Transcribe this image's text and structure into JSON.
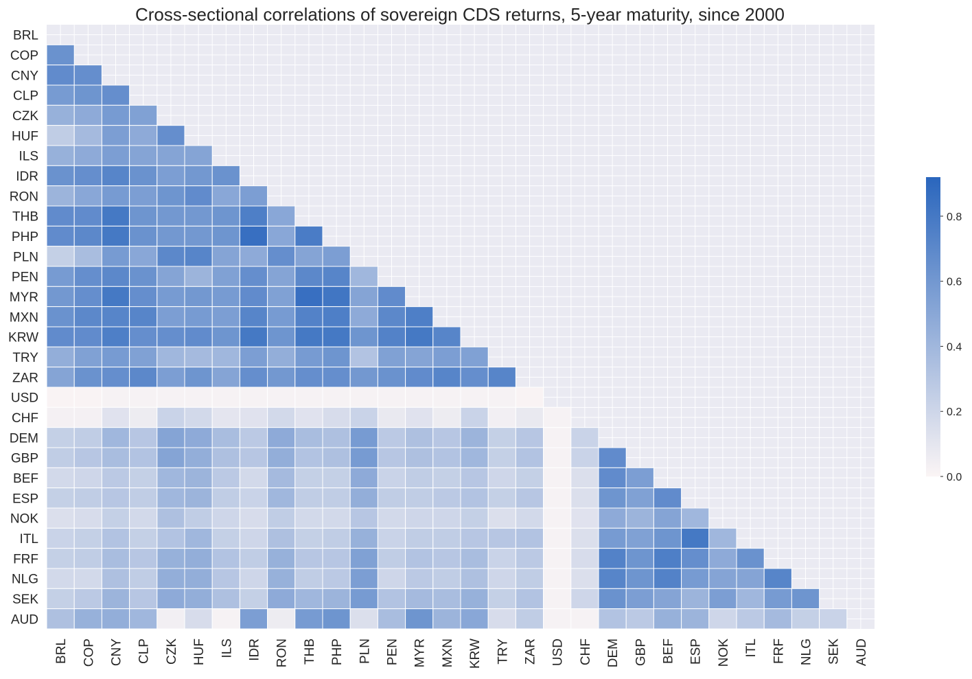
{
  "chart_data": {
    "type": "heatmap",
    "title": "Cross-sectional correlations of sovereign CDS returns, 5-year maturity, since 2000",
    "labels": [
      "BRL",
      "COP",
      "CNY",
      "CLP",
      "CZK",
      "HUF",
      "ILS",
      "IDR",
      "RON",
      "THB",
      "PHP",
      "PLN",
      "PEN",
      "MYR",
      "MXN",
      "KRW",
      "TRY",
      "ZAR",
      "USD",
      "CHF",
      "DEM",
      "GBP",
      "BEF",
      "ESP",
      "NOK",
      "ITL",
      "FRF",
      "NLG",
      "SEK",
      "AUD"
    ],
    "mask": "upper-triangle-including-diagonal",
    "rows": [
      [],
      [
        0.64
      ],
      [
        0.68,
        0.66
      ],
      [
        0.58,
        0.62,
        0.66
      ],
      [
        0.44,
        0.48,
        0.58,
        0.54
      ],
      [
        0.26,
        0.38,
        0.56,
        0.48,
        0.66
      ],
      [
        0.44,
        0.48,
        0.56,
        0.52,
        0.52,
        0.52
      ],
      [
        0.64,
        0.66,
        0.72,
        0.64,
        0.56,
        0.6,
        0.64
      ],
      [
        0.42,
        0.5,
        0.58,
        0.56,
        0.62,
        0.68,
        0.5,
        0.56
      ],
      [
        0.68,
        0.68,
        0.8,
        0.62,
        0.6,
        0.6,
        0.62,
        0.76,
        0.5
      ],
      [
        0.68,
        0.7,
        0.8,
        0.64,
        0.6,
        0.6,
        0.62,
        0.86,
        0.5,
        0.78
      ],
      [
        0.24,
        0.36,
        0.58,
        0.5,
        0.7,
        0.72,
        0.52,
        0.48,
        0.66,
        0.52,
        0.56
      ],
      [
        0.58,
        0.66,
        0.7,
        0.64,
        0.52,
        0.42,
        0.54,
        0.66,
        0.52,
        0.7,
        0.72,
        0.4
      ],
      [
        0.6,
        0.66,
        0.8,
        0.66,
        0.58,
        0.6,
        0.58,
        0.68,
        0.54,
        0.86,
        0.82,
        0.52,
        0.68
      ],
      [
        0.64,
        0.7,
        0.72,
        0.72,
        0.56,
        0.58,
        0.56,
        0.72,
        0.58,
        0.74,
        0.76,
        0.48,
        0.7,
        0.76
      ],
      [
        0.68,
        0.68,
        0.76,
        0.66,
        0.66,
        0.68,
        0.62,
        0.8,
        0.62,
        0.8,
        0.8,
        0.62,
        0.74,
        0.8,
        0.72
      ],
      [
        0.46,
        0.54,
        0.58,
        0.54,
        0.4,
        0.38,
        0.4,
        0.56,
        0.46,
        0.58,
        0.62,
        0.32,
        0.54,
        0.52,
        0.56,
        0.54
      ],
      [
        0.52,
        0.64,
        0.66,
        0.7,
        0.56,
        0.62,
        0.52,
        0.66,
        0.6,
        0.66,
        0.66,
        0.6,
        0.64,
        0.68,
        0.72,
        0.66,
        0.72
      ],
      [
        0.01,
        0.01,
        0.02,
        0.02,
        0.02,
        0.02,
        0.02,
        0.02,
        0.02,
        0.02,
        0.02,
        0.02,
        0.02,
        0.02,
        0.02,
        0.02,
        0.02,
        0.01
      ],
      [
        0.03,
        0.03,
        0.12,
        0.06,
        0.22,
        0.18,
        0.1,
        0.12,
        0.18,
        0.12,
        0.16,
        0.22,
        0.08,
        0.12,
        0.06,
        0.22,
        0.04,
        0.08,
        0.02
      ],
      [
        0.24,
        0.26,
        0.4,
        0.3,
        0.52,
        0.48,
        0.36,
        0.28,
        0.48,
        0.36,
        0.34,
        0.58,
        0.28,
        0.34,
        0.3,
        0.42,
        0.24,
        0.3,
        0.02,
        0.22
      ],
      [
        0.26,
        0.3,
        0.36,
        0.32,
        0.52,
        0.46,
        0.34,
        0.3,
        0.46,
        0.32,
        0.34,
        0.58,
        0.3,
        0.34,
        0.32,
        0.4,
        0.24,
        0.32,
        0.02,
        0.22,
        0.68
      ],
      [
        0.18,
        0.2,
        0.28,
        0.24,
        0.4,
        0.42,
        0.28,
        0.18,
        0.38,
        0.24,
        0.24,
        0.48,
        0.22,
        0.26,
        0.24,
        0.3,
        0.2,
        0.24,
        0.02,
        0.14,
        0.68,
        0.56
      ],
      [
        0.24,
        0.26,
        0.3,
        0.26,
        0.4,
        0.42,
        0.26,
        0.22,
        0.4,
        0.26,
        0.26,
        0.46,
        0.26,
        0.26,
        0.28,
        0.32,
        0.24,
        0.3,
        0.02,
        0.14,
        0.62,
        0.54,
        0.68
      ],
      [
        0.14,
        0.16,
        0.24,
        0.18,
        0.34,
        0.26,
        0.2,
        0.16,
        0.26,
        0.18,
        0.18,
        0.3,
        0.18,
        0.2,
        0.2,
        0.24,
        0.14,
        0.18,
        0.02,
        0.12,
        0.48,
        0.42,
        0.52,
        0.4
      ],
      [
        0.22,
        0.24,
        0.32,
        0.24,
        0.32,
        0.4,
        0.24,
        0.2,
        0.34,
        0.24,
        0.26,
        0.44,
        0.22,
        0.26,
        0.26,
        0.3,
        0.3,
        0.32,
        0.02,
        0.14,
        0.58,
        0.54,
        0.62,
        0.8,
        0.4
      ],
      [
        0.24,
        0.26,
        0.36,
        0.3,
        0.44,
        0.46,
        0.32,
        0.26,
        0.44,
        0.3,
        0.3,
        0.54,
        0.26,
        0.32,
        0.3,
        0.36,
        0.22,
        0.28,
        0.02,
        0.16,
        0.74,
        0.62,
        0.76,
        0.66,
        0.48,
        0.64
      ],
      [
        0.18,
        0.18,
        0.34,
        0.26,
        0.46,
        0.46,
        0.3,
        0.2,
        0.44,
        0.26,
        0.28,
        0.56,
        0.2,
        0.28,
        0.26,
        0.34,
        0.2,
        0.26,
        0.02,
        0.14,
        0.72,
        0.62,
        0.74,
        0.58,
        0.52,
        0.52,
        0.72
      ],
      [
        0.24,
        0.28,
        0.42,
        0.3,
        0.48,
        0.46,
        0.34,
        0.24,
        0.48,
        0.4,
        0.42,
        0.58,
        0.32,
        0.38,
        0.36,
        0.44,
        0.24,
        0.32,
        0.02,
        0.2,
        0.64,
        0.56,
        0.52,
        0.42,
        0.56,
        0.4,
        0.58,
        0.62
      ],
      [
        0.34,
        0.44,
        0.46,
        0.4,
        0.04,
        0.16,
        0.02,
        0.56,
        0.06,
        0.58,
        0.62,
        0.14,
        0.36,
        0.62,
        0.42,
        0.5,
        0.16,
        0.26,
        0.02,
        0.02,
        0.32,
        0.28,
        0.44,
        0.42,
        0.2,
        0.28,
        0.38,
        0.24,
        0.22
      ]
    ],
    "colorbar": {
      "min": 0.0,
      "max": 0.92,
      "ticks": [
        "0.0",
        "0.2",
        "0.4",
        "0.6",
        "0.8"
      ],
      "tick_values": [
        0.0,
        0.2,
        0.4,
        0.6,
        0.8
      ]
    },
    "colors": {
      "low": "#fbf5f5",
      "high": "#2a66bd",
      "background": "#eaeaf2",
      "grid": "#ffffff"
    },
    "grid": true,
    "legend": "colorbar-right"
  }
}
